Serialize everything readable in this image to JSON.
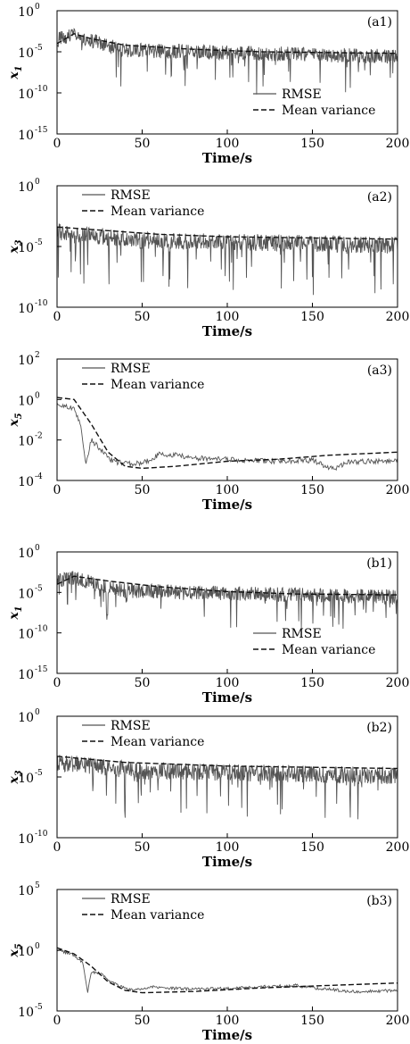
{
  "colors": {
    "rmse": "#555555",
    "mean_variance": "#111111",
    "axes": "#000000"
  },
  "chart_data": [
    {
      "id": "a1",
      "type": "line",
      "panel_label": "(a1)",
      "ylabel": "x1",
      "ylabel_base": "x",
      "ylabel_sub": "1",
      "xlabel": "Time/s",
      "xlim": [
        0,
        200
      ],
      "xticks": [
        "0",
        "50",
        "100",
        "150",
        "200"
      ],
      "yscale": "log",
      "ylim_exp": [
        -15,
        0
      ],
      "yticks": [
        {
          "base": "10",
          "exp": "0"
        },
        {
          "base": "10",
          "exp": "-5"
        },
        {
          "base": "10",
          "exp": "-10"
        },
        {
          "base": "10",
          "exp": "-15"
        }
      ],
      "legend": {
        "placement": "bottom-right",
        "rmse": "RMSE",
        "mean_variance": "Mean variance"
      },
      "mean_variance_log10": [
        [
          0,
          -4
        ],
        [
          10,
          -2.8
        ],
        [
          20,
          -3.4
        ],
        [
          40,
          -4.2
        ],
        [
          80,
          -4.7
        ],
        [
          120,
          -5
        ],
        [
          200,
          -5.2
        ]
      ],
      "rmse_profile": {
        "center": [
          [
            0,
            -3.5
          ],
          [
            10,
            -3
          ],
          [
            40,
            -4.8
          ],
          [
            200,
            -5.6
          ]
        ],
        "spread": 1.8,
        "dip_depth": 4.5
      }
    },
    {
      "id": "a2",
      "type": "line",
      "panel_label": "(a2)",
      "ylabel": "x3",
      "ylabel_base": "x",
      "ylabel_sub": "3",
      "xlabel": "Time/s",
      "xlim": [
        0,
        200
      ],
      "xticks": [
        "0",
        "50",
        "100",
        "150",
        "200"
      ],
      "yscale": "log",
      "ylim_exp": [
        -10,
        0
      ],
      "yticks": [
        {
          "base": "10",
          "exp": "0"
        },
        {
          "base": "10",
          "exp": "-5"
        },
        {
          "base": "10",
          "exp": "-10"
        }
      ],
      "legend": {
        "placement": "top-left",
        "rmse": "RMSE",
        "mean_variance": "Mean variance"
      },
      "mean_variance_log10": [
        [
          0,
          -3.4
        ],
        [
          30,
          -3.7
        ],
        [
          60,
          -4.0
        ],
        [
          100,
          -4.2
        ],
        [
          200,
          -4.4
        ]
      ],
      "rmse_profile": {
        "center": [
          [
            0,
            -3.8
          ],
          [
            50,
            -4.5
          ],
          [
            200,
            -4.9
          ]
        ],
        "spread": 1.4,
        "dip_depth": 4
      }
    },
    {
      "id": "a3",
      "type": "line",
      "panel_label": "(a3)",
      "ylabel": "x5",
      "ylabel_base": "x",
      "ylabel_sub": "5",
      "xlabel": "Time/s",
      "xlim": [
        0,
        200
      ],
      "xticks": [
        "0",
        "50",
        "100",
        "150",
        "200"
      ],
      "yscale": "log",
      "ylim_exp": [
        -4,
        2
      ],
      "yticks": [
        {
          "base": "10",
          "exp": "2"
        },
        {
          "base": "10",
          "exp": "0"
        },
        {
          "base": "10",
          "exp": "-2"
        },
        {
          "base": "10",
          "exp": "-4"
        }
      ],
      "legend": {
        "placement": "top-left",
        "rmse": "RMSE",
        "mean_variance": "Mean variance"
      },
      "mean_variance_log10": [
        [
          0,
          0.1
        ],
        [
          10,
          0
        ],
        [
          20,
          -1.2
        ],
        [
          30,
          -2.6
        ],
        [
          40,
          -3.3
        ],
        [
          50,
          -3.4
        ],
        [
          70,
          -3.3
        ],
        [
          100,
          -3.05
        ],
        [
          130,
          -2.95
        ],
        [
          160,
          -2.75
        ],
        [
          200,
          -2.6
        ]
      ],
      "rmse_log10": [
        [
          0,
          -0.3
        ],
        [
          5,
          -0.3
        ],
        [
          10,
          -0.5
        ],
        [
          14,
          -1.3
        ],
        [
          17,
          -3.2
        ],
        [
          20,
          -2.0
        ],
        [
          25,
          -2.4
        ],
        [
          30,
          -2.9
        ],
        [
          35,
          -3.1
        ],
        [
          40,
          -3.15
        ],
        [
          45,
          -3.2
        ],
        [
          55,
          -3.0
        ],
        [
          60,
          -2.7
        ],
        [
          70,
          -2.75
        ],
        [
          80,
          -2.9
        ],
        [
          100,
          -2.95
        ],
        [
          110,
          -3.0
        ],
        [
          130,
          -3.05
        ],
        [
          150,
          -3.0
        ],
        [
          160,
          -3.4
        ],
        [
          165,
          -3.35
        ],
        [
          170,
          -3.1
        ],
        [
          200,
          -3.0
        ]
      ]
    },
    {
      "id": "b1",
      "type": "line",
      "panel_label": "(b1)",
      "ylabel": "x1",
      "ylabel_base": "x",
      "ylabel_sub": "1",
      "xlabel": "Time/s",
      "xlim": [
        0,
        200
      ],
      "xticks": [
        "0",
        "50",
        "100",
        "150",
        "200"
      ],
      "yscale": "log",
      "ylim_exp": [
        -15,
        0
      ],
      "yticks": [
        {
          "base": "10",
          "exp": "0"
        },
        {
          "base": "10",
          "exp": "-5"
        },
        {
          "base": "10",
          "exp": "-10"
        },
        {
          "base": "10",
          "exp": "-15"
        }
      ],
      "legend": {
        "placement": "bottom-right",
        "rmse": "RMSE",
        "mean_variance": "Mean variance"
      },
      "mean_variance_log10": [
        [
          0,
          -4
        ],
        [
          10,
          -3
        ],
        [
          30,
          -3.6
        ],
        [
          60,
          -4.3
        ],
        [
          100,
          -4.9
        ],
        [
          140,
          -5.2
        ],
        [
          200,
          -5.3
        ]
      ],
      "rmse_profile": {
        "center": [
          [
            0,
            -3.6
          ],
          [
            10,
            -3.2
          ],
          [
            40,
            -4.8
          ],
          [
            200,
            -5.6
          ]
        ],
        "spread": 1.8,
        "dip_depth": 4.5
      }
    },
    {
      "id": "b2",
      "type": "line",
      "panel_label": "(b2)",
      "ylabel": "x3",
      "ylabel_base": "x",
      "ylabel_sub": "3",
      "xlabel": "Time/s",
      "xlim": [
        0,
        200
      ],
      "xticks": [
        "0",
        "50",
        "100",
        "150",
        "200"
      ],
      "yscale": "log",
      "ylim_exp": [
        -10,
        0
      ],
      "yticks": [
        {
          "base": "10",
          "exp": "0"
        },
        {
          "base": "10",
          "exp": "-5"
        },
        {
          "base": "10",
          "exp": "-10"
        }
      ],
      "legend": {
        "placement": "top-left",
        "rmse": "RMSE",
        "mean_variance": "Mean variance"
      },
      "mean_variance_log10": [
        [
          0,
          -3.3
        ],
        [
          40,
          -3.8
        ],
        [
          100,
          -4.1
        ],
        [
          200,
          -4.3
        ]
      ],
      "rmse_profile": {
        "center": [
          [
            0,
            -3.8
          ],
          [
            50,
            -4.5
          ],
          [
            200,
            -4.9
          ]
        ],
        "spread": 1.4,
        "dip_depth": 4
      }
    },
    {
      "id": "b3",
      "type": "line",
      "panel_label": "(b3)",
      "ylabel": "x5",
      "ylabel_base": "x",
      "ylabel_sub": "5",
      "xlabel": "Time/s",
      "xlim": [
        0,
        200
      ],
      "xticks": [
        "0",
        "50",
        "100",
        "150",
        "200"
      ],
      "yscale": "log",
      "ylim_exp": [
        -5,
        5
      ],
      "yticks": [
        {
          "base": "10",
          "exp": "5"
        },
        {
          "base": "10",
          "exp": "0"
        },
        {
          "base": "10",
          "exp": "-5"
        }
      ],
      "legend": {
        "placement": "top-left",
        "rmse": "RMSE",
        "mean_variance": "Mean variance"
      },
      "mean_variance_log10": [
        [
          0,
          0.2
        ],
        [
          10,
          -0.3
        ],
        [
          20,
          -1.3
        ],
        [
          30,
          -2.6
        ],
        [
          40,
          -3.3
        ],
        [
          50,
          -3.5
        ],
        [
          80,
          -3.4
        ],
        [
          120,
          -3.1
        ],
        [
          160,
          -2.9
        ],
        [
          200,
          -2.7
        ]
      ],
      "rmse_log10": [
        [
          0,
          0
        ],
        [
          10,
          -0.4
        ],
        [
          15,
          -1.0
        ],
        [
          18,
          -3.4
        ],
        [
          20,
          -1.8
        ],
        [
          25,
          -1.9
        ],
        [
          30,
          -2.4
        ],
        [
          35,
          -2.8
        ],
        [
          40,
          -3.1
        ],
        [
          45,
          -3.3
        ],
        [
          55,
          -3.0
        ],
        [
          60,
          -3.1
        ],
        [
          80,
          -3.2
        ],
        [
          100,
          -3.15
        ],
        [
          120,
          -3.0
        ],
        [
          140,
          -2.9
        ],
        [
          150,
          -3.1
        ],
        [
          160,
          -3.2
        ],
        [
          170,
          -3.4
        ],
        [
          180,
          -3.4
        ],
        [
          200,
          -3.3
        ]
      ]
    }
  ]
}
